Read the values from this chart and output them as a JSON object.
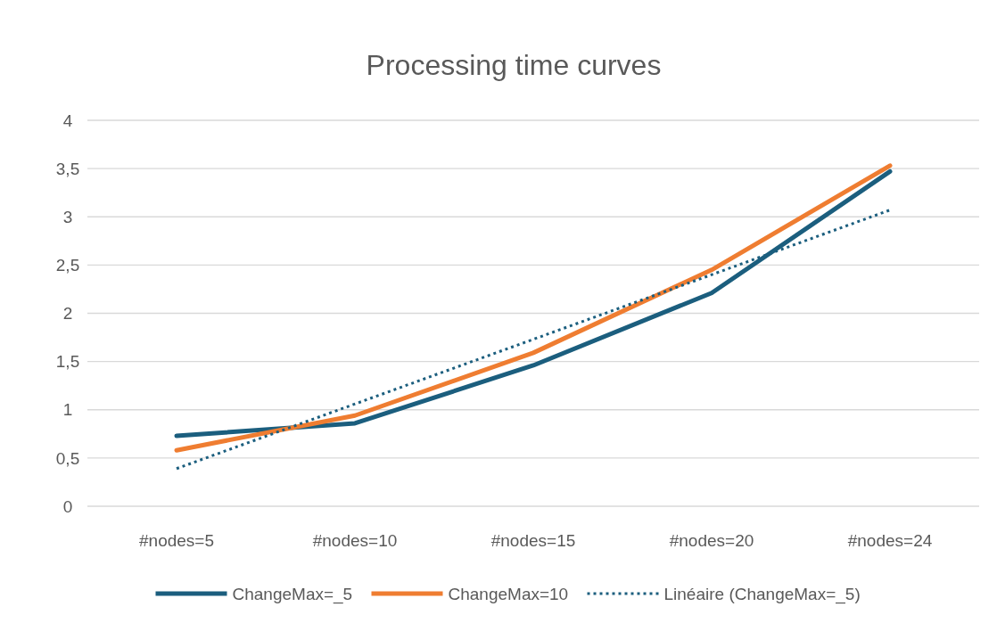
{
  "chart_data": {
    "type": "line",
    "title": "Processing time curves",
    "categories": [
      "#nodes=5",
      "#nodes=10",
      "#nodes=15",
      "#nodes=20",
      "#nodes=24"
    ],
    "series": [
      {
        "name": "ChangeMax=_5",
        "color": "#1b5e7e",
        "values": [
          0.73,
          0.86,
          1.46,
          2.21,
          3.47
        ]
      },
      {
        "name": "ChangeMax=10",
        "color": "#ef7d31",
        "values": [
          0.58,
          0.94,
          1.59,
          2.45,
          3.53
        ]
      },
      {
        "name": "Linéaire (ChangeMax=_5)",
        "color": "#1b5e7e",
        "line_style": "dotted",
        "x": [
          "#nodes=5",
          "#nodes=24"
        ],
        "values": [
          0.39,
          3.07
        ]
      }
    ],
    "ylim": [
      0,
      4
    ],
    "yticks": [
      0,
      {
        "value": 0.5,
        "label": "0,5"
      },
      1,
      {
        "value": 1.5,
        "label": "1,5"
      },
      2,
      {
        "value": 2.5,
        "label": "2,5"
      },
      3,
      {
        "value": 3.5,
        "label": "3,5"
      },
      4
    ],
    "grid": "y",
    "legend": "bottom",
    "line_style": "solid",
    "marker": "none"
  }
}
